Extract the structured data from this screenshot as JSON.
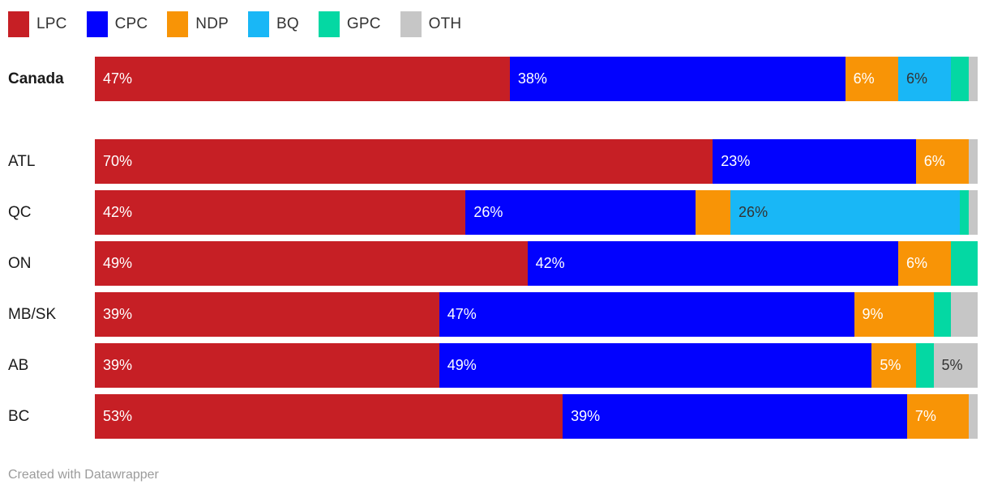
{
  "legend": {
    "items": [
      {
        "party": "LPC",
        "label": "LPC",
        "color": "#c61f25"
      },
      {
        "party": "CPC",
        "label": "CPC",
        "color": "#0202fe"
      },
      {
        "party": "NDP",
        "label": "NDP",
        "color": "#f89406"
      },
      {
        "party": "BQ",
        "label": "BQ",
        "color": "#19b7f6"
      },
      {
        "party": "GPC",
        "label": "GPC",
        "color": "#04d8a3"
      },
      {
        "party": "OTH",
        "label": "OTH",
        "color": "#c6c6c6"
      }
    ]
  },
  "colors": {
    "LPC": "#c61f25",
    "CPC": "#0202fe",
    "NDP": "#f89406",
    "BQ": "#19b7f6",
    "GPC": "#04d8a3",
    "OTH": "#c6c6c6",
    "label_light": "#ffffff",
    "label_dark": "#333333"
  },
  "chart_data": {
    "type": "bar",
    "stacked": true,
    "orientation": "horizontal",
    "value_format": "percent",
    "xlim": [
      0,
      100
    ],
    "grid": false,
    "legend_position": "top-left",
    "categories": [
      "Canada",
      "ATL",
      "QC",
      "ON",
      "MB/SK",
      "AB",
      "BC"
    ],
    "series": [
      {
        "name": "LPC",
        "values": [
          47,
          70,
          42,
          49,
          39,
          39,
          53
        ]
      },
      {
        "name": "CPC",
        "values": [
          38,
          23,
          26,
          42,
          47,
          49,
          39
        ]
      },
      {
        "name": "NDP",
        "values": [
          6,
          6,
          4,
          6,
          9,
          5,
          7
        ]
      },
      {
        "name": "BQ",
        "values": [
          6,
          0,
          26,
          0,
          0,
          0,
          0
        ]
      },
      {
        "name": "GPC",
        "values": [
          2,
          0,
          1,
          3,
          2,
          2,
          0
        ]
      },
      {
        "name": "OTH",
        "values": [
          1,
          1,
          1,
          0,
          3,
          5,
          1
        ]
      }
    ]
  },
  "rows": [
    {
      "label": "Canada",
      "bold": true,
      "gap_after": true,
      "segments": [
        {
          "party": "LPC",
          "value": 47,
          "label": "47%",
          "label_color": "#ffffff"
        },
        {
          "party": "CPC",
          "value": 38,
          "label": "38%",
          "label_color": "#ffffff"
        },
        {
          "party": "NDP",
          "value": 6,
          "label": "6%",
          "label_color": "#ffffff"
        },
        {
          "party": "BQ",
          "value": 6,
          "label": "6%",
          "label_color": "#333333"
        },
        {
          "party": "GPC",
          "value": 2,
          "label": "",
          "label_color": "#ffffff"
        },
        {
          "party": "OTH",
          "value": 1,
          "label": "",
          "label_color": "#333333"
        }
      ]
    },
    {
      "label": "ATL",
      "bold": false,
      "gap_after": false,
      "segments": [
        {
          "party": "LPC",
          "value": 70,
          "label": "70%",
          "label_color": "#ffffff"
        },
        {
          "party": "CPC",
          "value": 23,
          "label": "23%",
          "label_color": "#ffffff"
        },
        {
          "party": "NDP",
          "value": 6,
          "label": "6%",
          "label_color": "#ffffff"
        },
        {
          "party": "OTH",
          "value": 1,
          "label": "",
          "label_color": "#333333"
        }
      ]
    },
    {
      "label": "QC",
      "bold": false,
      "gap_after": false,
      "segments": [
        {
          "party": "LPC",
          "value": 42,
          "label": "42%",
          "label_color": "#ffffff"
        },
        {
          "party": "CPC",
          "value": 26,
          "label": "26%",
          "label_color": "#ffffff"
        },
        {
          "party": "NDP",
          "value": 4,
          "label": "",
          "label_color": "#ffffff"
        },
        {
          "party": "BQ",
          "value": 26,
          "label": "26%",
          "label_color": "#333333"
        },
        {
          "party": "GPC",
          "value": 1,
          "label": "",
          "label_color": "#ffffff"
        },
        {
          "party": "OTH",
          "value": 1,
          "label": "",
          "label_color": "#333333"
        }
      ]
    },
    {
      "label": "ON",
      "bold": false,
      "gap_after": false,
      "segments": [
        {
          "party": "LPC",
          "value": 49,
          "label": "49%",
          "label_color": "#ffffff"
        },
        {
          "party": "CPC",
          "value": 42,
          "label": "42%",
          "label_color": "#ffffff"
        },
        {
          "party": "NDP",
          "value": 6,
          "label": "6%",
          "label_color": "#ffffff"
        },
        {
          "party": "GPC",
          "value": 3,
          "label": "",
          "label_color": "#ffffff"
        }
      ]
    },
    {
      "label": "MB/SK",
      "bold": false,
      "gap_after": false,
      "segments": [
        {
          "party": "LPC",
          "value": 39,
          "label": "39%",
          "label_color": "#ffffff"
        },
        {
          "party": "CPC",
          "value": 47,
          "label": "47%",
          "label_color": "#ffffff"
        },
        {
          "party": "NDP",
          "value": 9,
          "label": "9%",
          "label_color": "#ffffff"
        },
        {
          "party": "GPC",
          "value": 2,
          "label": "",
          "label_color": "#ffffff"
        },
        {
          "party": "OTH",
          "value": 3,
          "label": "",
          "label_color": "#333333"
        }
      ]
    },
    {
      "label": "AB",
      "bold": false,
      "gap_after": false,
      "segments": [
        {
          "party": "LPC",
          "value": 39,
          "label": "39%",
          "label_color": "#ffffff"
        },
        {
          "party": "CPC",
          "value": 49,
          "label": "49%",
          "label_color": "#ffffff"
        },
        {
          "party": "NDP",
          "value": 5,
          "label": "5%",
          "label_color": "#ffffff"
        },
        {
          "party": "GPC",
          "value": 2,
          "label": "",
          "label_color": "#ffffff"
        },
        {
          "party": "OTH",
          "value": 5,
          "label": "5%",
          "label_color": "#333333"
        }
      ]
    },
    {
      "label": "BC",
      "bold": false,
      "gap_after": false,
      "segments": [
        {
          "party": "LPC",
          "value": 53,
          "label": "53%",
          "label_color": "#ffffff"
        },
        {
          "party": "CPC",
          "value": 39,
          "label": "39%",
          "label_color": "#ffffff"
        },
        {
          "party": "NDP",
          "value": 7,
          "label": "7%",
          "label_color": "#ffffff"
        },
        {
          "party": "OTH",
          "value": 1,
          "label": "",
          "label_color": "#333333"
        }
      ]
    }
  ],
  "footer": {
    "credit": "Created with Datawrapper"
  }
}
